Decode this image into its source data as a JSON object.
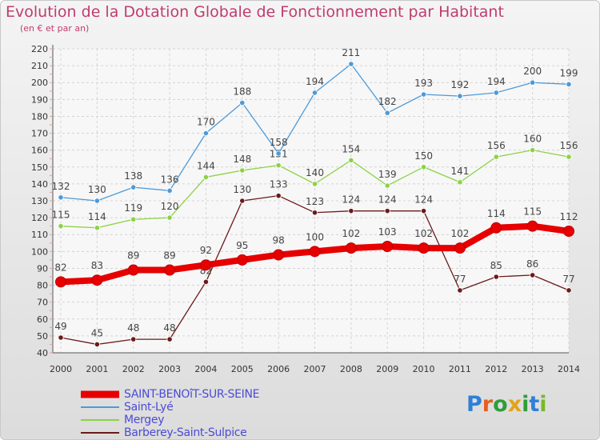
{
  "header": {
    "title": "Evolution de la Dotation Globale de Fonctionnement par Habitant",
    "subtitle": "(en € et par an)"
  },
  "logo": {
    "letters": [
      "P",
      "r",
      "o",
      "x",
      "i",
      "t",
      "i"
    ],
    "colors": [
      "#2f7fd8",
      "#e65f1e",
      "#2f9e3a",
      "#e3a317",
      "#2f9e3a",
      "#2f7fd8",
      "#7ab827"
    ]
  },
  "chart_data": {
    "type": "line",
    "x": [
      "2000",
      "2001",
      "2002",
      "2003",
      "2004",
      "2005",
      "2006",
      "2007",
      "2008",
      "2009",
      "2010",
      "2011",
      "2012",
      "2013",
      "2014"
    ],
    "ylim": [
      40,
      220
    ],
    "yticks": [
      "40",
      "50",
      "60",
      "70",
      "80",
      "90",
      "100",
      "110",
      "120",
      "130",
      "140",
      "150",
      "160",
      "170",
      "180",
      "190",
      "200",
      "210",
      "220"
    ],
    "grid": true,
    "legend_position": "bottom-left",
    "series": [
      {
        "name": "SAINT-BENOîT-SUR-SEINE",
        "color": "#e60000",
        "values": [
          82,
          83,
          89,
          89,
          92,
          95,
          98,
          100,
          102,
          103,
          102,
          102,
          114,
          115,
          112
        ],
        "labels": [
          "82",
          "83",
          "89",
          "89",
          "92",
          "95",
          "98",
          "100",
          "102",
          "103",
          "102",
          "102",
          "114",
          "115",
          "112"
        ]
      },
      {
        "name": "Saint-Lyé",
        "color": "#4d9ad8",
        "values": [
          132,
          130,
          138,
          136,
          170,
          188,
          158,
          194,
          211,
          182,
          193,
          192,
          194,
          200,
          199
        ],
        "labels": [
          "132",
          "130",
          "138",
          "136",
          "170",
          "188",
          "158",
          "194",
          "211",
          "182",
          "193",
          "192",
          "194",
          "200",
          "199"
        ]
      },
      {
        "name": "Mergey",
        "color": "#8cd244",
        "values": [
          115,
          114,
          119,
          120,
          144,
          148,
          151,
          140,
          154,
          139,
          150,
          141,
          156,
          160,
          156
        ],
        "labels": [
          "115",
          "114",
          "119",
          "120",
          "144",
          "148",
          "151",
          "140",
          "154",
          "139",
          "150",
          "141",
          "156",
          "160",
          "156"
        ]
      },
      {
        "name": "Barberey-Saint-Sulpice",
        "color": "#6b1a1a",
        "values": [
          49,
          45,
          48,
          48,
          82,
          130,
          133,
          123,
          124,
          124,
          124,
          77,
          85,
          86,
          77
        ],
        "labels": [
          "49",
          "45",
          "48",
          "48",
          "82",
          "130",
          "133",
          "123",
          "124",
          "124",
          "124",
          "77",
          "85",
          "86",
          "77"
        ]
      }
    ]
  }
}
